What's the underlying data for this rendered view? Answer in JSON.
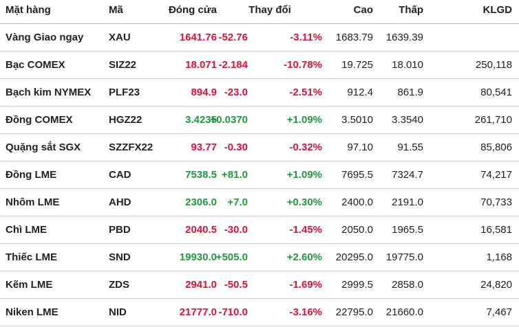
{
  "table": {
    "headers": {
      "name": "Mặt hàng",
      "code": "Mã",
      "close": "Đóng cửa",
      "change": "Thay đổi",
      "high": "Cao",
      "low": "Thấp",
      "volume": "KLGD"
    },
    "rows": [
      {
        "name": "Vàng Giao ngay",
        "code": "XAU",
        "close": "1641.76",
        "change": "-52.76",
        "pct": "-3.11%",
        "high": "1683.79",
        "low": "1639.39"
      },
      {
        "name": "Bạc COMEX",
        "code": "SIZ22",
        "close": "18.071",
        "change": "-2.184",
        "pct": "-10.78%",
        "high": "19.725",
        "low": "18.010",
        "volume": "250,118"
      },
      {
        "name": "Bạch kim NYMEX",
        "code": "PLF23",
        "close": "894.9",
        "change": "-23.0",
        "pct": "-2.51%",
        "high": "912.4",
        "low": "861.9",
        "volume": "80,541"
      },
      {
        "name": "Đồng COMEX",
        "code": "HGZ22",
        "close": "3.4235",
        "change": "+0.0370",
        "pct": "+1.09%",
        "high": "3.5010",
        "low": "3.3540",
        "volume": "261,710"
      },
      {
        "name": "Quặng sắt SGX",
        "code": "SZZFX22",
        "close": "93.77",
        "change": "-0.30",
        "pct": "-0.32%",
        "high": "97.10",
        "low": "91.55",
        "volume": "85,806"
      },
      {
        "name": "Đồng LME",
        "code": "CAD",
        "close": "7538.5",
        "change": "+81.0",
        "pct": "+1.09%",
        "high": "7695.5",
        "low": "7324.7",
        "volume": "74,217"
      },
      {
        "name": "Nhôm LME",
        "code": "AHD",
        "close": "2306.0",
        "change": "+7.0",
        "pct": "+0.30%",
        "high": "2400.0",
        "low": "2191.0",
        "volume": "70,733"
      },
      {
        "name": "Chì LME",
        "code": "PBD",
        "close": "2040.5",
        "change": "-30.0",
        "pct": "-1.45%",
        "high": "2050.0",
        "low": "1965.5",
        "volume": "16,581"
      },
      {
        "name": "Thiếc LME",
        "code": "SND",
        "close": "19930.0",
        "change": "+505.0",
        "pct": "+2.60%",
        "high": "20295.0",
        "low": "19775.0",
        "volume": "1,168"
      },
      {
        "name": "Kẽm LME",
        "code": "ZDS",
        "close": "2941.0",
        "change": "-50.5",
        "pct": "-1.69%",
        "high": "2999.5",
        "low": "2858.0",
        "volume": "24,820"
      },
      {
        "name": "Niken LME",
        "code": "NID",
        "close": "21777.0",
        "change": "-710.0",
        "pct": "-3.16%",
        "high": "22795.0",
        "low": "21660.0",
        "volume": "7,467"
      }
    ]
  }
}
